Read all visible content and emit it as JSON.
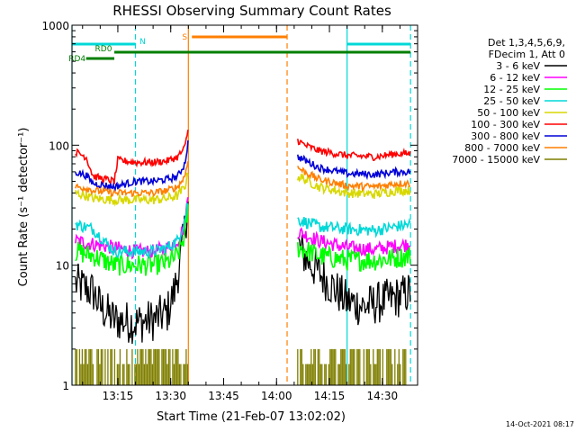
{
  "chart_data": {
    "type": "line",
    "title": "RHESSI Observing Summary Count Rates",
    "xlabel": "Start Time (21-Feb-07 13:02:02)",
    "ylabel": "Count Rate (s⁻¹ detector⁻¹)",
    "x_unit": "minutes",
    "xlim": [
      "13:02",
      "14:40"
    ],
    "x_ticks": [
      "13:15",
      "13:30",
      "13:45",
      "14:00",
      "14:15",
      "14:30"
    ],
    "y_scale": "log",
    "ylim": [
      1,
      1000
    ],
    "y_ticks": [
      "1",
      "10",
      "100",
      "1000"
    ],
    "legend_header": [
      "Det 1,3,4,5,6,9,",
      "FDecim 1, Att 0"
    ],
    "legend_position": "right",
    "footer_date": "14-Oct-2021 08:17",
    "flags": [
      {
        "label": "N",
        "color": "#00d8d8",
        "segments": [
          [
            "13:02",
            "13:20"
          ],
          [
            "14:20",
            "14:38"
          ]
        ]
      },
      {
        "label": "S",
        "color": "#ff7f00",
        "segments": [
          [
            "13:36",
            "14:03"
          ]
        ]
      },
      {
        "label": "RD0",
        "color": "#007f00",
        "segments": [
          [
            "13:14",
            "14:38"
          ]
        ]
      },
      {
        "label": "RD4",
        "color": "#007f00",
        "segments": [
          [
            "13:06",
            "13:14"
          ]
        ]
      }
    ],
    "vertical_lines": [
      {
        "time": "13:02",
        "color": "#00d8d8",
        "style": "solid"
      },
      {
        "time": "13:20",
        "color": "#00d8d8",
        "style": "dashed"
      },
      {
        "time": "13:35",
        "color": "#ff7f00",
        "style": "solid"
      },
      {
        "time": "14:03",
        "color": "#ff7f00",
        "style": "dashed"
      },
      {
        "time": "14:20",
        "color": "#00d8d8",
        "style": "solid"
      },
      {
        "time": "14:38",
        "color": "#00d8d8",
        "style": "dashed"
      }
    ],
    "series": [
      {
        "name": "3 - 6 keV",
        "color": "#000000",
        "noise": 0.18,
        "segments": [
          {
            "x": [
              "13:03",
              "13:08",
              "13:10",
              "13:14",
              "13:20",
              "13:25",
              "13:29",
              "13:31",
              "13:33",
              "13:35"
            ],
            "y": [
              7,
              6,
              4.5,
              3.5,
              3.3,
              3.5,
              4,
              6,
              12,
              35
            ]
          },
          {
            "x": [
              "14:06",
              "14:07",
              "14:10",
              "14:15",
              "14:20",
              "14:25",
              "14:30",
              "14:35",
              "14:38"
            ],
            "y": [
              15,
              13,
              10,
              7,
              5,
              4.5,
              5,
              5.5,
              6
            ]
          }
        ]
      },
      {
        "name": "6 - 12 keV",
        "color": "#ff00ff",
        "noise": 0.06,
        "segments": [
          {
            "x": [
              "13:03",
              "13:08",
              "13:14",
              "13:20",
              "13:25",
              "13:29",
              "13:32",
              "13:34",
              "13:35"
            ],
            "y": [
              16,
              15,
              14,
              13,
              13,
              14,
              16,
              22,
              40
            ]
          },
          {
            "x": [
              "14:06",
              "14:08",
              "14:12",
              "14:20",
              "14:28",
              "14:34",
              "14:38"
            ],
            "y": [
              19,
              18,
              16,
              14,
              13.5,
              14.5,
              15
            ]
          }
        ]
      },
      {
        "name": "12 - 25 keV",
        "color": "#00ff00",
        "noise": 0.09,
        "segments": [
          {
            "x": [
              "13:03",
              "13:08",
              "13:14",
              "13:20",
              "13:25",
              "13:29",
              "13:32",
              "13:34",
              "13:35"
            ],
            "y": [
              13,
              12,
              10,
              10,
              10,
              10.5,
              12,
              18,
              30
            ]
          },
          {
            "x": [
              "14:06",
              "14:08",
              "14:12",
              "14:20",
              "14:28",
              "14:34",
              "14:38"
            ],
            "y": [
              14,
              13.5,
              12,
              11,
              11,
              11.5,
              12
            ]
          }
        ]
      },
      {
        "name": "25 - 50 keV",
        "color": "#00d8d8",
        "noise": 0.05,
        "segments": [
          {
            "x": [
              "13:03",
              "13:08",
              "13:14",
              "13:20",
              "13:25",
              "13:29",
              "13:32",
              "13:34",
              "13:35"
            ],
            "y": [
              22,
              20,
              13,
              13,
              13,
              14,
              16,
              24,
              35
            ]
          },
          {
            "x": [
              "14:06",
              "14:08",
              "14:12",
              "14:20",
              "14:28",
              "14:34",
              "14:38"
            ],
            "y": [
              24,
              23,
              21,
              20,
              19.5,
              21,
              22
            ]
          }
        ]
      },
      {
        "name": "50 - 100 keV",
        "color": "#d8d800",
        "noise": 0.04,
        "segments": [
          {
            "x": [
              "13:03",
              "13:06",
              "13:08",
              "13:14",
              "13:20",
              "13:25",
              "13:29",
              "13:32",
              "13:34",
              "13:35"
            ],
            "y": [
              40,
              38,
              36,
              35,
              35,
              35,
              36,
              38,
              45,
              60
            ]
          },
          {
            "x": [
              "14:06",
              "14:08",
              "14:12",
              "14:20",
              "14:28",
              "14:34",
              "14:38"
            ],
            "y": [
              55,
              52,
              45,
              40,
              39,
              42,
              42
            ]
          }
        ]
      },
      {
        "name": "100 - 300 keV",
        "color": "#ff0000",
        "noise": 0.03,
        "segments": [
          {
            "x": [
              "13:03",
              "13:06",
              "13:08",
              "13:14",
              "13:15",
              "13:20",
              "13:25",
              "13:29",
              "13:32",
              "13:34",
              "13:35"
            ],
            "y": [
              88,
              80,
              55,
              50,
              75,
              72,
              72,
              74,
              80,
              95,
              140
            ]
          },
          {
            "x": [
              "14:06",
              "14:08",
              "14:12",
              "14:20",
              "14:28",
              "14:34",
              "14:38"
            ],
            "y": [
              110,
              100,
              90,
              82,
              80,
              85,
              85
            ]
          }
        ]
      },
      {
        "name": "300 - 800 keV",
        "color": "#0000d8",
        "noise": 0.03,
        "segments": [
          {
            "x": [
              "13:03",
              "13:06",
              "13:08",
              "13:14",
              "13:20",
              "13:25",
              "13:29",
              "13:32",
              "13:34",
              "13:35"
            ],
            "y": [
              60,
              56,
              48,
              45,
              50,
              50,
              52,
              55,
              70,
              110
            ]
          },
          {
            "x": [
              "14:06",
              "14:08",
              "14:12",
              "14:20",
              "14:28",
              "14:34",
              "14:38"
            ],
            "y": [
              80,
              75,
              65,
              58,
              57,
              60,
              60
            ]
          }
        ]
      },
      {
        "name": "800 - 7000 keV",
        "color": "#ff7f00",
        "noise": 0.03,
        "segments": [
          {
            "x": [
              "13:03",
              "13:06",
              "13:08",
              "13:14",
              "13:20",
              "13:25",
              "13:29",
              "13:32",
              "13:34",
              "13:35"
            ],
            "y": [
              45,
              44,
              42,
              40,
              40,
              40,
              42,
              45,
              55,
              80
            ]
          },
          {
            "x": [
              "14:06",
              "14:08",
              "14:12",
              "14:20",
              "14:28",
              "14:34",
              "14:38"
            ],
            "y": [
              65,
              60,
              52,
              46,
              45,
              48,
              48
            ]
          }
        ]
      },
      {
        "name": "7000 - 15000 keV",
        "color": "#7f7f00",
        "noise": 0.0,
        "spiky": true,
        "segments": [
          {
            "x": [
              "13:03",
              "13:35"
            ],
            "y": [
              1,
              2
            ]
          },
          {
            "x": [
              "14:06",
              "14:38"
            ],
            "y": [
              1,
              2
            ]
          }
        ]
      }
    ]
  }
}
